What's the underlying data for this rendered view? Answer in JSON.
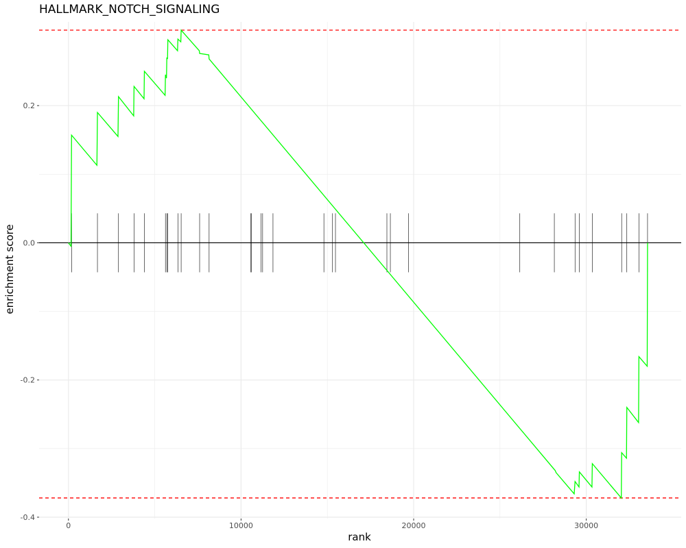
{
  "chart_data": {
    "type": "line",
    "title": "HALLMARK_NOTCH_SIGNALING",
    "xlabel": "rank",
    "ylabel": "enrichment score",
    "xlim": [
      -1700,
      35500
    ],
    "ylim": [
      -0.402,
      0.322
    ],
    "x_ticks": [
      0,
      10000,
      20000,
      30000
    ],
    "x_tick_labels": [
      "0",
      "10000",
      "20000",
      "30000"
    ],
    "y_ticks": [
      -0.4,
      -0.2,
      0.0,
      0.2
    ],
    "y_tick_labels": [
      "-0.4",
      "-0.2",
      "0.0",
      "0.2"
    ],
    "grid": true,
    "colors": {
      "curve": "#00ff00",
      "threshold": "#ff0000",
      "zero_line": "#000000",
      "hits": "#000000",
      "grid": "#ebebeb"
    },
    "thresholds": {
      "max_es": 0.31,
      "min_es": -0.372
    },
    "hits": [
      180,
      1680,
      2900,
      3800,
      4400,
      5620,
      5700,
      5760,
      6340,
      6530,
      7600,
      8150,
      10550,
      10600,
      11150,
      11250,
      11850,
      14800,
      15300,
      15470,
      18450,
      18650,
      19700,
      26150,
      28150,
      29350,
      29600,
      30350,
      32050,
      32350,
      33050,
      33550
    ],
    "series": [
      {
        "x": [
          0,
          150,
          180,
          1650,
          1680,
          2870,
          2900,
          3780,
          3800,
          4380,
          4400,
          5600,
          5620,
          5680,
          5700,
          5740,
          5760,
          6320,
          6340,
          6510,
          6530,
          7580,
          7600,
          8130,
          8150,
          28200,
          28250,
          29300,
          29350,
          29580,
          29600,
          30330,
          30350,
          32030,
          32050,
          32330,
          32350,
          33030,
          33050,
          33530,
          33550,
          33560
        ],
        "y": [
          0.0,
          -0.005,
          0.157,
          0.113,
          0.19,
          0.155,
          0.213,
          0.185,
          0.228,
          0.21,
          0.25,
          0.215,
          0.245,
          0.24,
          0.27,
          0.268,
          0.296,
          0.28,
          0.297,
          0.293,
          0.31,
          0.28,
          0.276,
          0.274,
          0.268,
          -0.332,
          -0.335,
          -0.366,
          -0.348,
          -0.356,
          -0.334,
          -0.356,
          -0.322,
          -0.372,
          -0.306,
          -0.314,
          -0.24,
          -0.262,
          -0.166,
          -0.18,
          -0.002,
          0.0
        ]
      }
    ]
  }
}
